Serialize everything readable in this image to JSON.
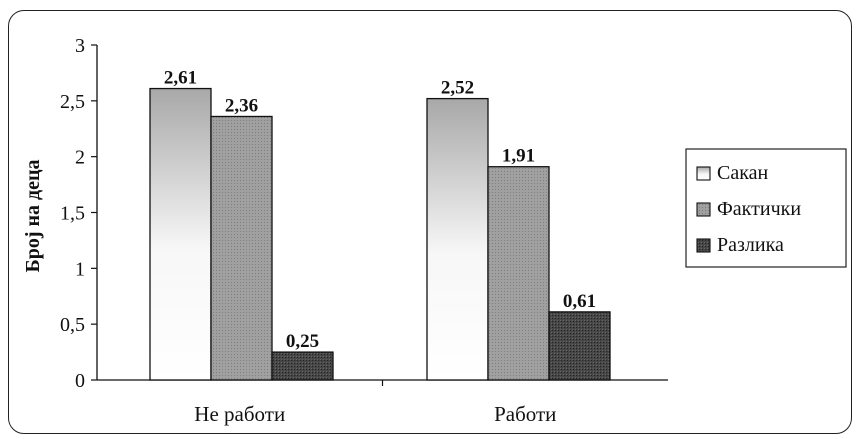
{
  "chart_data": {
    "type": "bar",
    "title": "",
    "xlabel": "",
    "ylabel": "Број на деца",
    "ylim": [
      0,
      3
    ],
    "yticks": [
      0,
      0.5,
      1,
      1.5,
      2,
      2.5,
      3
    ],
    "ytick_labels": [
      "0",
      "0,5",
      "1",
      "1,5",
      "2",
      "2,5",
      "3"
    ],
    "categories": [
      "Не работи",
      "Работи"
    ],
    "series": [
      {
        "name": "Сакан",
        "values": [
          2.61,
          2.52
        ],
        "labels": [
          "2,61",
          "2,52"
        ],
        "color": "#f2f2f2"
      },
      {
        "name": "Фактички",
        "values": [
          2.36,
          1.91
        ],
        "labels": [
          "2,36",
          "1,91"
        ],
        "color": "#9a9a9a"
      },
      {
        "name": "Разлика",
        "values": [
          0.25,
          0.61
        ],
        "labels": [
          "0,25",
          "0,61"
        ],
        "color": "#3c3c3c"
      }
    ],
    "grid": false,
    "legend_position": "right"
  }
}
